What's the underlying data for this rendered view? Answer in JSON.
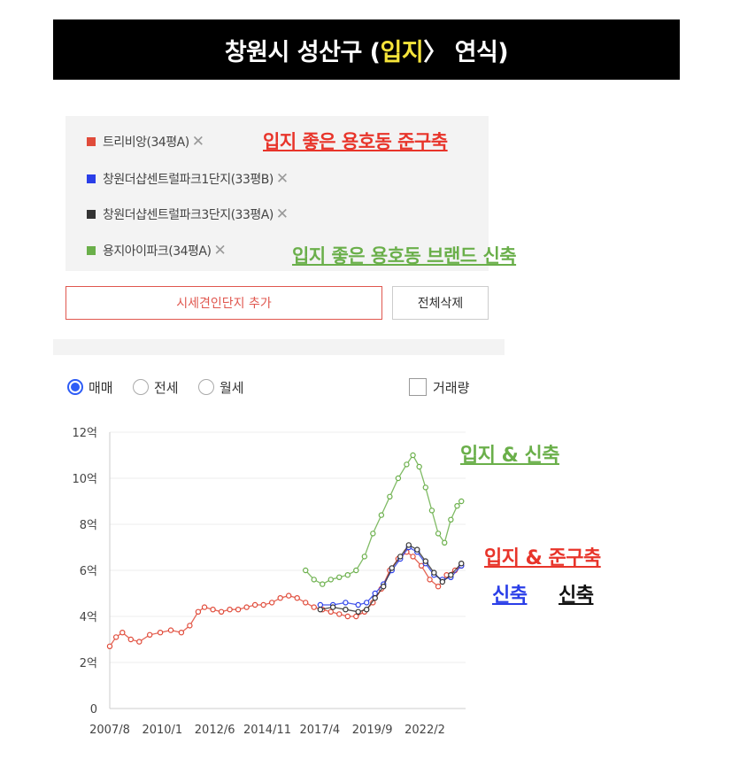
{
  "header": {
    "title_prefix": "창원시 성산구 (",
    "title_highlight": "입지",
    "title_suffix": " 〉 연식)"
  },
  "legend": {
    "items": [
      {
        "label": "트리비앙(34평A)",
        "color": "#e04b3a"
      },
      {
        "label": "창원더샵센트럴파크1단지(33평B)",
        "color": "#2a3ee8"
      },
      {
        "label": "창원더샵센트럴파크3단지(33평A)",
        "color": "#333333"
      },
      {
        "label": "용지아이파크(34평A)",
        "color": "#6aaf4a"
      }
    ],
    "remove_glyph": "✕"
  },
  "annotations": {
    "red_top": "입지 좋은 용호동 준구축",
    "green_top": "입지 좋은 용호동 브랜드 신축",
    "green_chart": "입지 & 신축",
    "red_chart": "입지 & 준구축",
    "blue_chart": "신축",
    "black_chart": "신축"
  },
  "buttons": {
    "add": "시세견인단지 추가",
    "delete_all": "전체삭제"
  },
  "filters": {
    "options": [
      "매매",
      "전세",
      "월세"
    ],
    "selected": "매매",
    "volume_label": "거래량",
    "volume_checked": false
  },
  "chart_data": {
    "type": "line",
    "y_unit": "억",
    "ylim": [
      0,
      12
    ],
    "y_ticks": [
      "0",
      "2억",
      "4억",
      "6억",
      "8억",
      "10억",
      "12억"
    ],
    "x_ticks": [
      "2007/8",
      "2010/1",
      "2012/6",
      "2014/11",
      "2017/4",
      "2019/9",
      "2022/2"
    ],
    "xlim": [
      2007.6,
      2024.5
    ],
    "grid": true,
    "series": [
      {
        "name": "트리비앙(34평A)",
        "color": "#e04b3a",
        "points": [
          [
            2007.6,
            2.7
          ],
          [
            2007.9,
            3.1
          ],
          [
            2008.2,
            3.3
          ],
          [
            2008.6,
            3.0
          ],
          [
            2009.0,
            2.9
          ],
          [
            2009.5,
            3.2
          ],
          [
            2010.0,
            3.3
          ],
          [
            2010.5,
            3.4
          ],
          [
            2011.0,
            3.3
          ],
          [
            2011.4,
            3.6
          ],
          [
            2011.8,
            4.2
          ],
          [
            2012.1,
            4.4
          ],
          [
            2012.5,
            4.3
          ],
          [
            2012.9,
            4.2
          ],
          [
            2013.3,
            4.3
          ],
          [
            2013.7,
            4.3
          ],
          [
            2014.1,
            4.4
          ],
          [
            2014.5,
            4.5
          ],
          [
            2014.9,
            4.5
          ],
          [
            2015.3,
            4.6
          ],
          [
            2015.7,
            4.8
          ],
          [
            2016.1,
            4.9
          ],
          [
            2016.5,
            4.8
          ],
          [
            2016.9,
            4.6
          ],
          [
            2017.3,
            4.4
          ],
          [
            2017.7,
            4.3
          ],
          [
            2018.1,
            4.2
          ],
          [
            2018.5,
            4.1
          ],
          [
            2018.9,
            4.0
          ],
          [
            2019.3,
            4.0
          ],
          [
            2019.7,
            4.2
          ],
          [
            2020.1,
            4.6
          ],
          [
            2020.5,
            5.2
          ],
          [
            2020.9,
            6.0
          ],
          [
            2021.3,
            6.5
          ],
          [
            2021.7,
            6.8
          ],
          [
            2022.0,
            6.6
          ],
          [
            2022.4,
            6.2
          ],
          [
            2022.8,
            5.6
          ],
          [
            2023.2,
            5.3
          ],
          [
            2023.6,
            5.8
          ],
          [
            2024.0,
            6.0
          ],
          [
            2024.3,
            6.2
          ]
        ]
      },
      {
        "name": "창원더샵센트럴파크1단지(33평B)",
        "color": "#2a3ee8",
        "points": [
          [
            2017.6,
            4.5
          ],
          [
            2018.2,
            4.5
          ],
          [
            2018.8,
            4.6
          ],
          [
            2019.4,
            4.5
          ],
          [
            2019.8,
            4.6
          ],
          [
            2020.2,
            5.0
          ],
          [
            2020.6,
            5.4
          ],
          [
            2021.0,
            6.0
          ],
          [
            2021.4,
            6.5
          ],
          [
            2021.8,
            7.0
          ],
          [
            2022.2,
            6.8
          ],
          [
            2022.6,
            6.3
          ],
          [
            2023.0,
            5.8
          ],
          [
            2023.4,
            5.6
          ],
          [
            2023.8,
            5.7
          ],
          [
            2024.3,
            6.2
          ]
        ]
      },
      {
        "name": "창원더샵센트럴파크3단지(33평A)",
        "color": "#333333",
        "points": [
          [
            2017.6,
            4.3
          ],
          [
            2018.2,
            4.4
          ],
          [
            2018.8,
            4.3
          ],
          [
            2019.4,
            4.2
          ],
          [
            2019.8,
            4.3
          ],
          [
            2020.2,
            4.8
          ],
          [
            2020.6,
            5.3
          ],
          [
            2021.0,
            6.1
          ],
          [
            2021.4,
            6.6
          ],
          [
            2021.8,
            7.1
          ],
          [
            2022.2,
            6.9
          ],
          [
            2022.6,
            6.4
          ],
          [
            2023.0,
            5.9
          ],
          [
            2023.4,
            5.5
          ],
          [
            2023.8,
            5.8
          ],
          [
            2024.3,
            6.3
          ]
        ]
      },
      {
        "name": "용지아이파크(34평A)",
        "color": "#6aaf4a",
        "points": [
          [
            2016.9,
            6.0
          ],
          [
            2017.3,
            5.6
          ],
          [
            2017.7,
            5.4
          ],
          [
            2018.1,
            5.6
          ],
          [
            2018.5,
            5.7
          ],
          [
            2018.9,
            5.8
          ],
          [
            2019.3,
            6.0
          ],
          [
            2019.7,
            6.6
          ],
          [
            2020.1,
            7.6
          ],
          [
            2020.5,
            8.4
          ],
          [
            2020.9,
            9.2
          ],
          [
            2021.3,
            10.0
          ],
          [
            2021.7,
            10.6
          ],
          [
            2022.0,
            11.0
          ],
          [
            2022.3,
            10.5
          ],
          [
            2022.6,
            9.6
          ],
          [
            2022.9,
            8.6
          ],
          [
            2023.2,
            7.6
          ],
          [
            2023.5,
            7.2
          ],
          [
            2023.8,
            8.2
          ],
          [
            2024.1,
            8.8
          ],
          [
            2024.3,
            9.0
          ]
        ]
      }
    ]
  }
}
